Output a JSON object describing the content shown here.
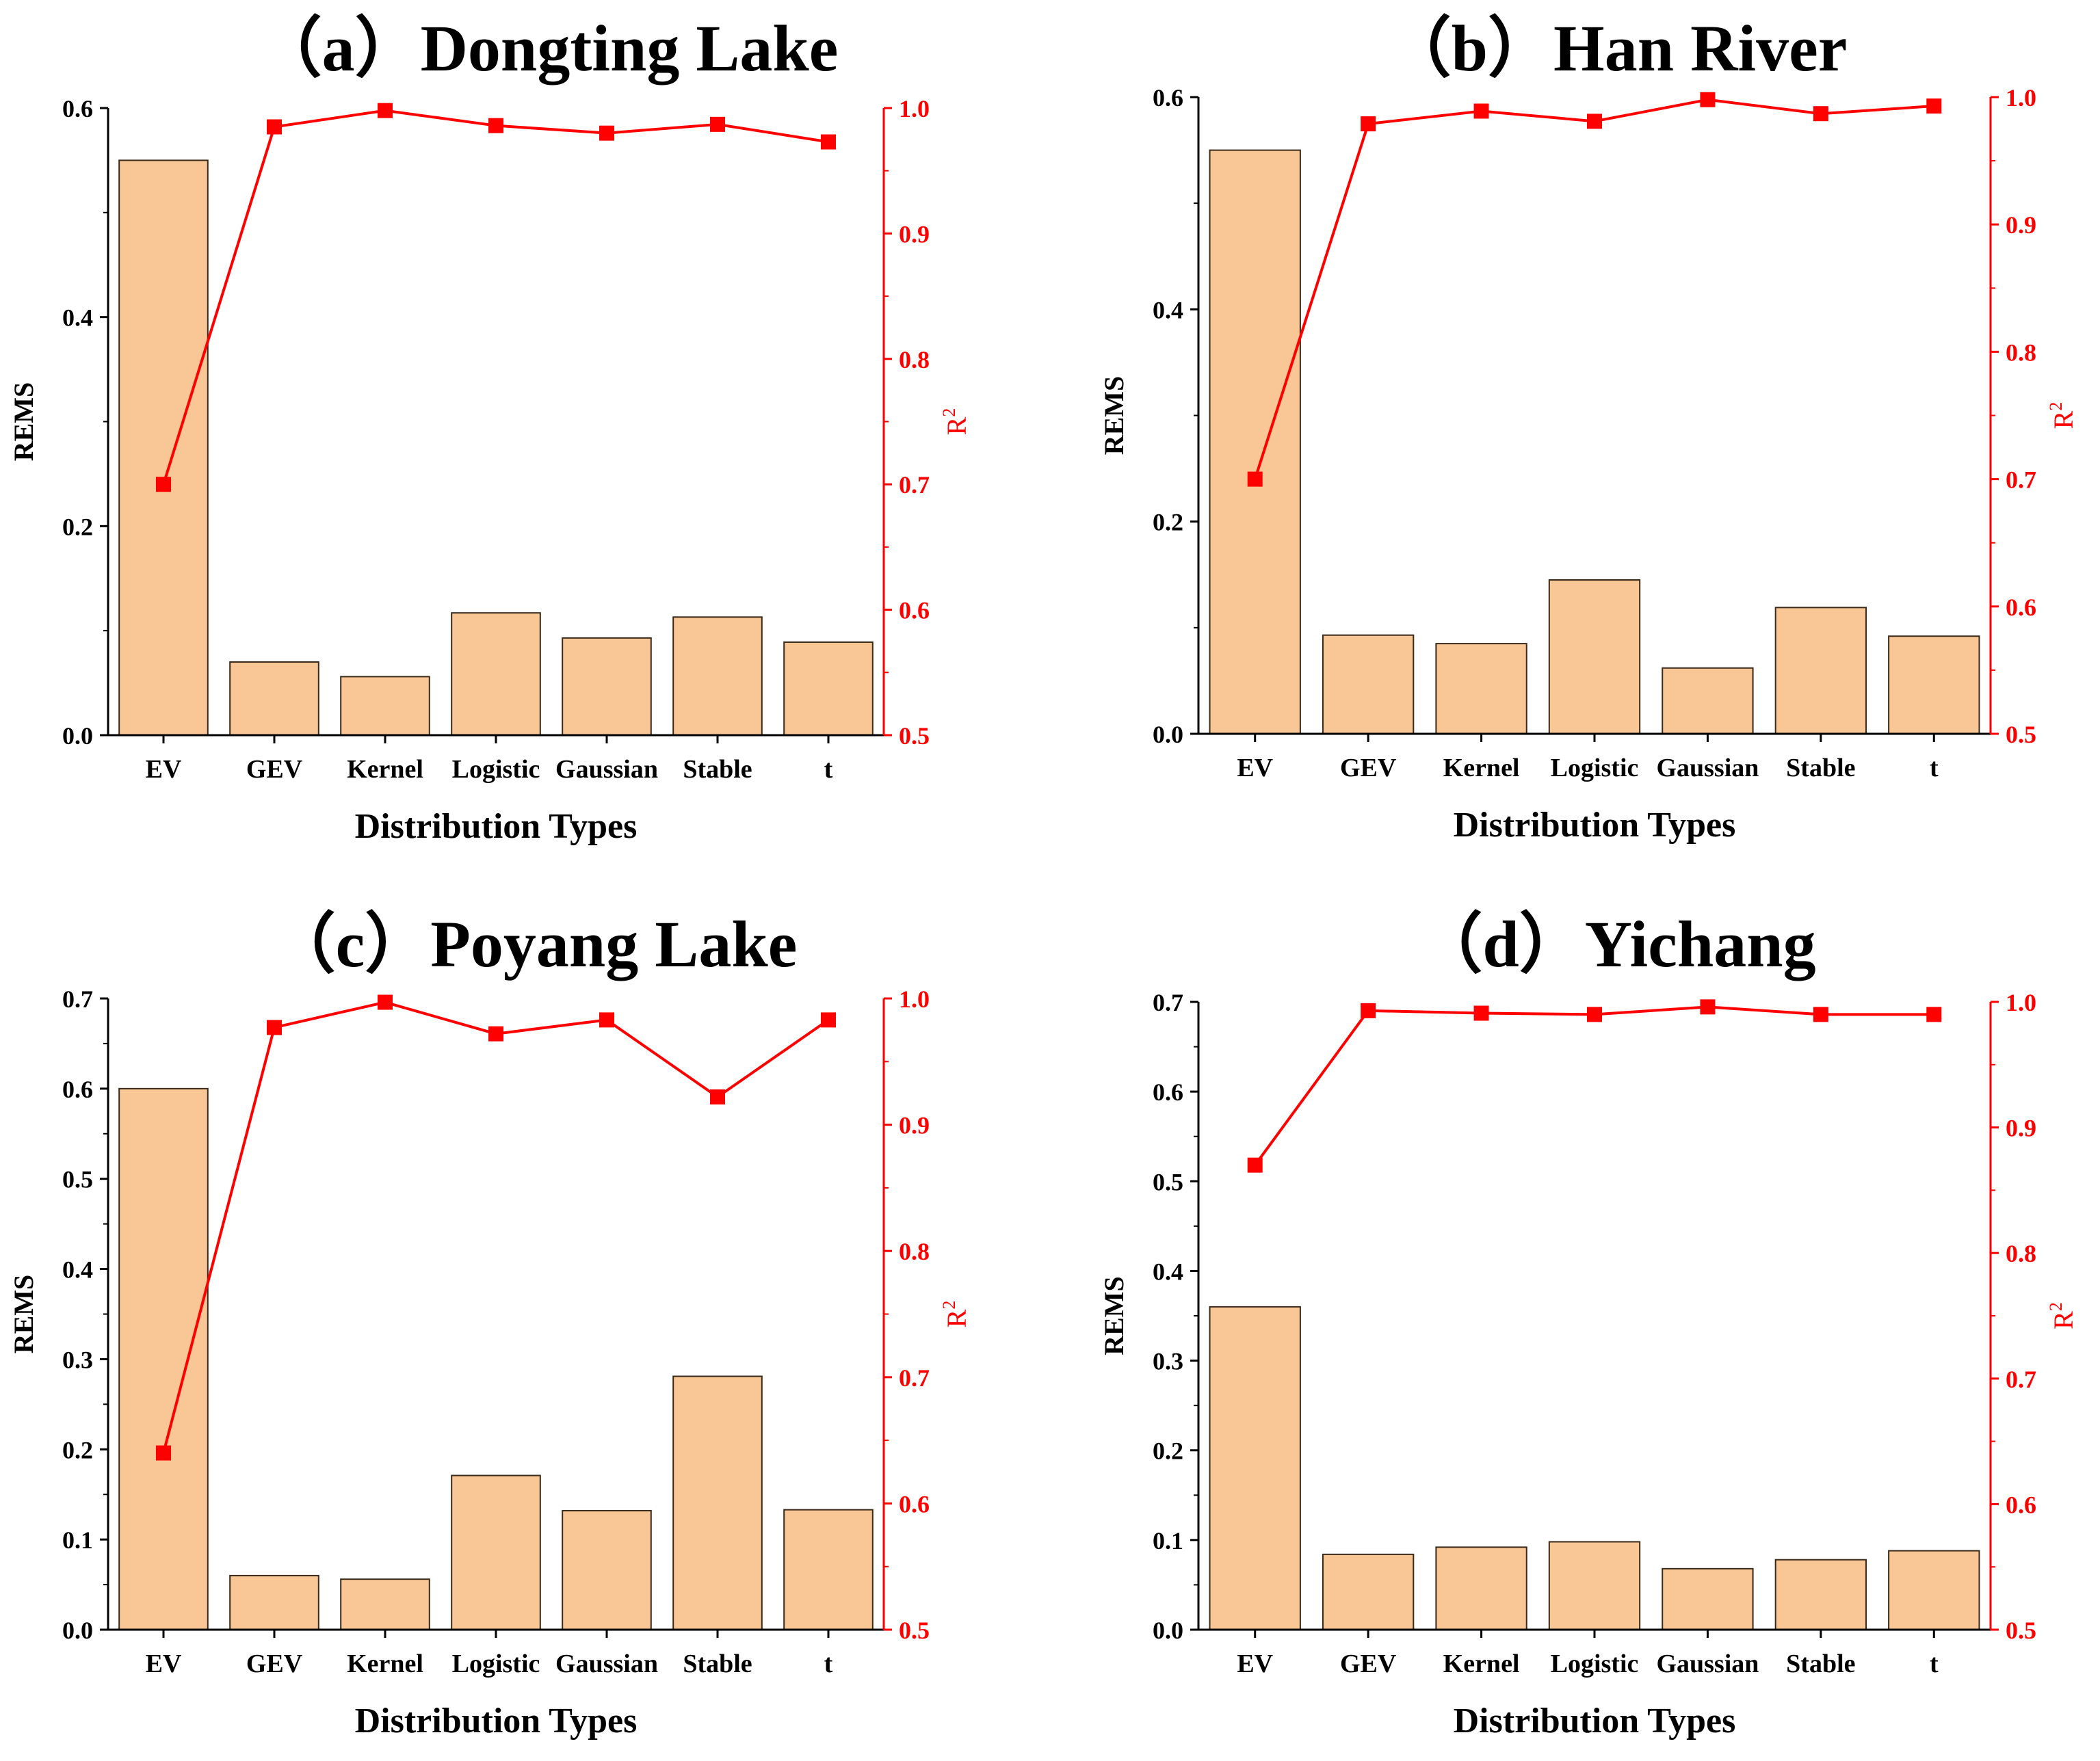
{
  "colors": {
    "bar_fill": "#f9c796",
    "bar_stroke": "#3a2a1a",
    "line": "#ff0000",
    "axis": "#000000"
  },
  "chart_data": [
    {
      "type": "bar",
      "title": "（a）Dongting Lake",
      "xlabel": "Distribution Types",
      "ylabel": "REMS",
      "y2label_base": "R",
      "y2label_sup": "2",
      "categories": [
        "EV",
        "GEV",
        "Kernel",
        "Logistic",
        "Gaussian",
        "Stable",
        "t"
      ],
      "series": [
        {
          "name": "REMS",
          "kind": "bar",
          "axis": "left",
          "values": [
            0.55,
            0.07,
            0.056,
            0.117,
            0.093,
            0.113,
            0.089
          ]
        },
        {
          "name": "R2",
          "kind": "line",
          "axis": "right",
          "values": [
            0.7,
            0.985,
            0.998,
            0.986,
            0.98,
            0.987,
            0.973
          ]
        }
      ],
      "ylim": [
        0,
        0.6
      ],
      "yticks": [
        "0.0",
        "0.2",
        "0.4",
        "0.6"
      ],
      "y2lim": [
        0.5,
        1.0
      ],
      "y2ticks": [
        "0.5",
        "0.6",
        "0.7",
        "0.8",
        "0.9",
        "1.0"
      ]
    },
    {
      "type": "bar",
      "title": "（b）Han River",
      "xlabel": "Distribution Types",
      "ylabel": "REMS",
      "y2label_base": "R",
      "y2label_sup": "2",
      "categories": [
        "EV",
        "GEV",
        "Kernel",
        "Logistic",
        "Gaussian",
        "Stable",
        "t"
      ],
      "series": [
        {
          "name": "REMS",
          "kind": "bar",
          "axis": "left",
          "values": [
            0.55,
            0.093,
            0.085,
            0.145,
            0.062,
            0.119,
            0.092
          ]
        },
        {
          "name": "R2",
          "kind": "line",
          "axis": "right",
          "values": [
            0.7,
            0.979,
            0.989,
            0.981,
            0.998,
            0.987,
            0.993
          ]
        }
      ],
      "ylim": [
        0,
        0.6
      ],
      "yticks": [
        "0.0",
        "0.2",
        "0.4",
        "0.6"
      ],
      "y2lim": [
        0.5,
        1.0
      ],
      "y2ticks": [
        "0.5",
        "0.6",
        "0.7",
        "0.8",
        "0.9",
        "1.0"
      ]
    },
    {
      "type": "bar",
      "title": "（c）Poyang Lake",
      "xlabel": "Distribution Types",
      "ylabel": "REMS",
      "y2label_base": "R",
      "y2label_sup": "2",
      "categories": [
        "EV",
        "GEV",
        "Kernel",
        "Logistic",
        "Gaussian",
        "Stable",
        "t"
      ],
      "series": [
        {
          "name": "REMS",
          "kind": "bar",
          "axis": "left",
          "values": [
            0.6,
            0.06,
            0.056,
            0.171,
            0.132,
            0.281,
            0.133
          ]
        },
        {
          "name": "R2",
          "kind": "line",
          "axis": "right",
          "values": [
            0.64,
            0.977,
            0.997,
            0.972,
            0.983,
            0.922,
            0.983
          ]
        }
      ],
      "ylim": [
        0,
        0.7
      ],
      "yticks": [
        "0.0",
        "0.1",
        "0.2",
        "0.3",
        "0.4",
        "0.5",
        "0.6",
        "0.7"
      ],
      "y2lim": [
        0.5,
        1.0
      ],
      "y2ticks": [
        "0.5",
        "0.6",
        "0.7",
        "0.8",
        "0.9",
        "1.0"
      ]
    },
    {
      "type": "bar",
      "title": "（d）Yichang",
      "xlabel": "Distribution Types",
      "ylabel": "REMS",
      "y2label_base": "R",
      "y2label_sup": "2",
      "categories": [
        "EV",
        "GEV",
        "Kernel",
        "Logistic",
        "Gaussian",
        "Stable",
        "t"
      ],
      "series": [
        {
          "name": "REMS",
          "kind": "bar",
          "axis": "left",
          "values": [
            0.36,
            0.084,
            0.092,
            0.098,
            0.068,
            0.078,
            0.088
          ]
        },
        {
          "name": "R2",
          "kind": "line",
          "axis": "right",
          "values": [
            0.87,
            0.993,
            0.991,
            0.99,
            0.996,
            0.99,
            0.99
          ]
        }
      ],
      "ylim": [
        0,
        0.7
      ],
      "yticks": [
        "0.0",
        "0.1",
        "0.2",
        "0.3",
        "0.4",
        "0.5",
        "0.6",
        "0.7"
      ],
      "y2lim": [
        0.5,
        1.0
      ],
      "y2ticks": [
        "0.5",
        "0.6",
        "0.7",
        "0.8",
        "0.9",
        "1.0"
      ]
    }
  ]
}
